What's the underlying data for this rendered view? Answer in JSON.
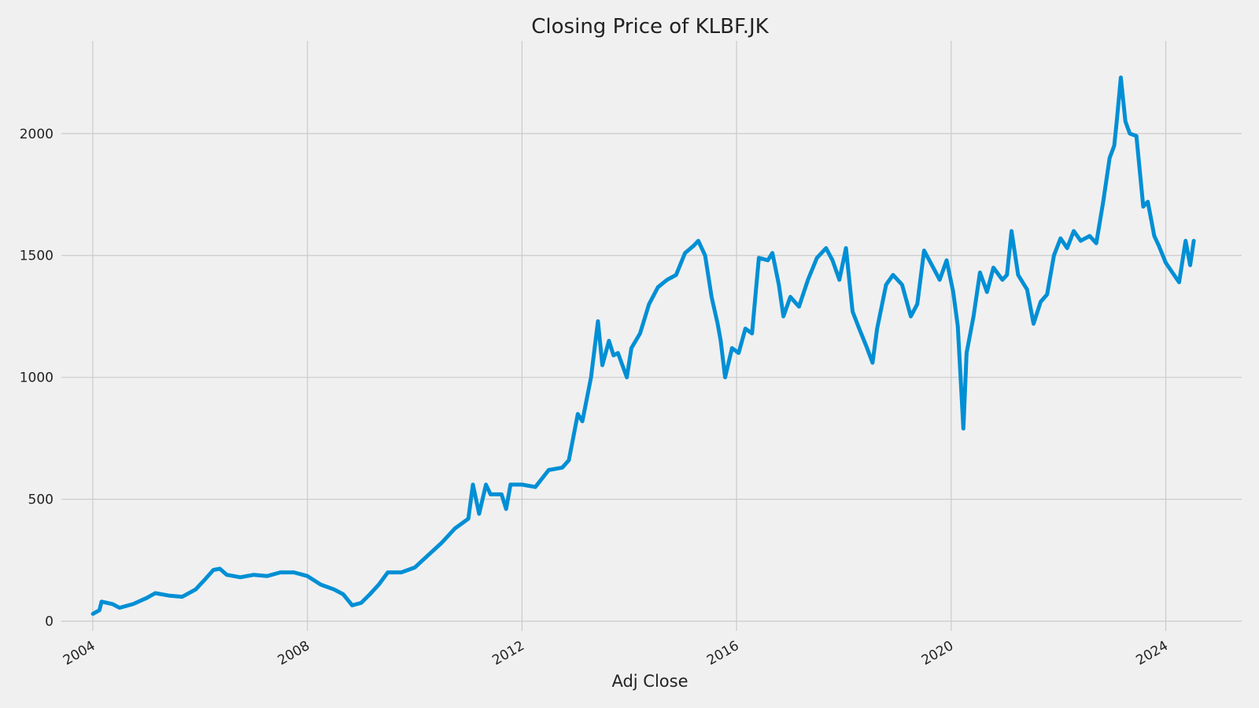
{
  "colors": {
    "background": "#f0f0f0",
    "grid": "#cbcbcb",
    "line": "#008fd5",
    "text": "#222222"
  },
  "chart_data": {
    "type": "line",
    "title": "Closing Price of KLBF.JK",
    "xlabel": "Adj Close",
    "ylabel": "",
    "grid": true,
    "xlim": [
      "2003-06-01",
      "2025-06-01"
    ],
    "ylim": [
      -40,
      2380
    ],
    "x_ticks": [
      "2004",
      "2008",
      "2012",
      "2016",
      "2020",
      "2024"
    ],
    "y_ticks": [
      0,
      500,
      1000,
      1500,
      2000
    ],
    "series": [
      {
        "x": [
          "2004-01-02",
          "2004-02-15",
          "2004-03-01",
          "2004-05-15",
          "2004-07-01",
          "2004-10-01",
          "2005-01-01",
          "2005-03-01",
          "2005-06-01",
          "2005-09-01",
          "2005-12-01",
          "2006-02-01",
          "2006-04-01",
          "2006-05-15",
          "2006-07-01",
          "2006-10-01",
          "2007-01-01",
          "2007-04-01",
          "2007-07-01",
          "2007-10-01",
          "2008-01-01",
          "2008-04-01",
          "2008-07-01",
          "2008-09-01",
          "2008-11-01",
          "2009-01-01",
          "2009-03-01",
          "2009-05-01",
          "2009-07-01",
          "2009-10-01",
          "2010-01-01",
          "2010-04-01",
          "2010-07-01",
          "2010-10-01",
          "2011-01-01",
          "2011-02-01",
          "2011-03-15",
          "2011-05-01",
          "2011-06-01",
          "2011-08-15",
          "2011-09-15",
          "2011-10-15",
          "2012-01-01",
          "2012-04-01",
          "2012-07-01",
          "2012-10-01",
          "2012-11-15",
          "2013-01-15",
          "2013-02-15",
          "2013-04-15",
          "2013-06-01",
          "2013-07-01",
          "2013-08-15",
          "2013-09-15",
          "2013-10-15",
          "2013-12-15",
          "2014-01-15",
          "2014-03-15",
          "2014-05-15",
          "2014-07-15",
          "2014-09-15",
          "2014-11-15",
          "2015-01-15",
          "2015-03-15",
          "2015-04-15",
          "2015-06-01",
          "2015-07-15",
          "2015-08-25",
          "2015-09-15",
          "2015-10-15",
          "2015-12-01",
          "2016-01-15",
          "2016-03-01",
          "2016-04-15",
          "2016-06-01",
          "2016-08-01",
          "2016-09-01",
          "2016-10-15",
          "2016-11-15",
          "2017-01-01",
          "2017-03-01",
          "2017-05-01",
          "2017-07-01",
          "2017-09-01",
          "2017-10-15",
          "2017-12-01",
          "2018-01-15",
          "2018-03-01",
          "2018-04-15",
          "2018-06-01",
          "2018-07-15",
          "2018-08-15",
          "2018-10-15",
          "2018-12-01",
          "2019-02-01",
          "2019-04-01",
          "2019-05-15",
          "2019-07-01",
          "2019-09-01",
          "2019-10-15",
          "2019-12-01",
          "2020-01-15",
          "2020-02-15",
          "2020-03-24",
          "2020-04-15",
          "2020-06-01",
          "2020-07-15",
          "2020-09-01",
          "2020-10-15",
          "2020-12-15",
          "2021-01-15",
          "2021-02-15",
          "2021-04-01",
          "2021-06-01",
          "2021-07-15",
          "2021-09-01",
          "2021-10-15",
          "2021-12-01",
          "2022-01-15",
          "2022-03-01",
          "2022-04-15",
          "2022-06-01",
          "2022-08-01",
          "2022-09-15",
          "2022-11-01",
          "2022-12-15",
          "2023-01-15",
          "2023-02-01",
          "2023-03-01",
          "2023-04-01",
          "2023-05-01",
          "2023-06-15",
          "2023-08-01",
          "2023-09-01",
          "2023-10-15",
          "2023-11-15",
          "2024-01-01",
          "2024-02-15",
          "2024-04-01",
          "2024-05-15",
          "2024-06-15",
          "2024-07-10"
        ],
        "y": [
          30,
          45,
          80,
          70,
          55,
          70,
          95,
          115,
          105,
          100,
          130,
          170,
          210,
          215,
          190,
          180,
          190,
          185,
          200,
          200,
          185,
          150,
          130,
          110,
          65,
          75,
          110,
          150,
          200,
          200,
          220,
          270,
          320,
          380,
          420,
          560,
          440,
          560,
          520,
          520,
          460,
          560,
          560,
          550,
          620,
          630,
          660,
          850,
          820,
          1000,
          1230,
          1050,
          1150,
          1090,
          1100,
          1000,
          1120,
          1180,
          1300,
          1370,
          1400,
          1420,
          1510,
          1540,
          1560,
          1500,
          1330,
          1220,
          1150,
          1000,
          1120,
          1100,
          1200,
          1180,
          1490,
          1480,
          1510,
          1380,
          1250,
          1330,
          1290,
          1400,
          1490,
          1530,
          1480,
          1400,
          1530,
          1270,
          1200,
          1130,
          1060,
          1200,
          1380,
          1420,
          1380,
          1250,
          1300,
          1520,
          1450,
          1400,
          1480,
          1350,
          1210,
          790,
          1100,
          1250,
          1430,
          1350,
          1450,
          1400,
          1420,
          1600,
          1420,
          1360,
          1220,
          1310,
          1340,
          1500,
          1570,
          1530,
          1600,
          1560,
          1580,
          1550,
          1720,
          1900,
          1950,
          2050,
          2230,
          2050,
          2000,
          1990,
          1700,
          1720,
          1580,
          1540,
          1470,
          1430,
          1390,
          1560,
          1460,
          1560
        ]
      }
    ]
  }
}
